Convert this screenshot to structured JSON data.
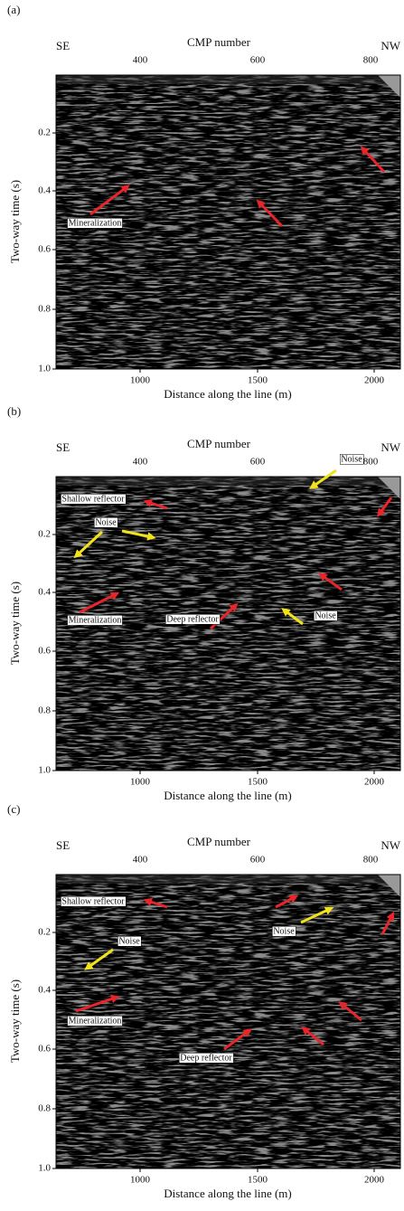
{
  "panels": [
    {
      "label": "(a)",
      "left_direction": "SE",
      "right_direction": "NW",
      "top_axis_title": "CMP number",
      "top_ticks": [
        "400",
        "600",
        "800"
      ],
      "y_axis_title": "Two-way time (s)",
      "y_ticks": [
        "0.2",
        "0.4",
        "0.6",
        "0.8",
        "1.0"
      ],
      "x_axis_title": "Distance along the line (m)",
      "x_ticks": [
        "1000",
        "1500",
        "2000"
      ],
      "annotations": [
        "Mineralization"
      ]
    },
    {
      "label": "(b)",
      "left_direction": "SE",
      "right_direction": "NW",
      "top_axis_title": "CMP number",
      "top_ticks": [
        "400",
        "600",
        "800"
      ],
      "y_axis_title": "Two-way time (s)",
      "y_ticks": [
        "0.2",
        "0.4",
        "0.6",
        "0.8",
        "1.0"
      ],
      "x_axis_title": "Distance along the line (m)",
      "x_ticks": [
        "1000",
        "1500",
        "2000"
      ],
      "annotations": [
        "Shallow reflector",
        "Noise",
        "Noise",
        "Mineralization",
        "Deep reflector",
        "Noise"
      ]
    },
    {
      "label": "(c)",
      "left_direction": "SE",
      "right_direction": "NW",
      "top_axis_title": "CMP number",
      "top_ticks": [
        "400",
        "600",
        "800"
      ],
      "y_axis_title": "Two-way time (s)",
      "y_ticks": [
        "0.2",
        "0.4",
        "0.6",
        "0.8",
        "1.0"
      ],
      "x_axis_title": "Distance along the line (m)",
      "x_ticks": [
        "1000",
        "1500",
        "2000"
      ],
      "annotations": [
        "Shallow reflector",
        "Noise",
        "Noise",
        "Mineralization",
        "Deep reflector"
      ]
    }
  ]
}
